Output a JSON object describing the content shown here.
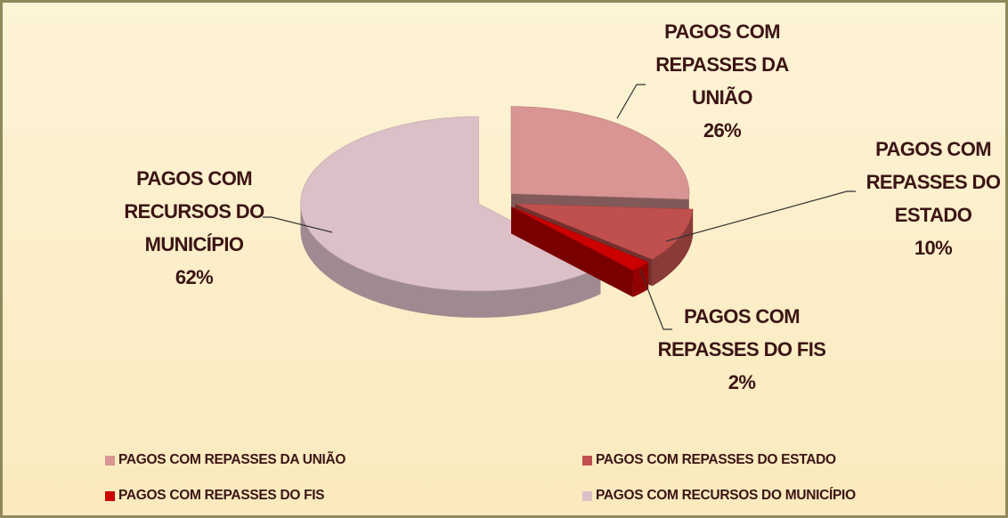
{
  "chart_data": {
    "type": "pie3d",
    "categories": [
      "PAGOS COM REPASSES DA UNIÃO",
      "PAGOS COM REPASSES DO ESTADO",
      "PAGOS COM REPASSES DO FIS",
      "PAGOS COM RECURSOS DO MUNICÍPIO"
    ],
    "values": [
      26,
      10,
      2,
      62
    ],
    "value_labels": [
      "26%",
      "10%",
      "2%",
      "62%"
    ],
    "colors": [
      "#d99594",
      "#c0504d",
      "#cc0000",
      "#dcc0c8"
    ],
    "legend": "bottom"
  }
}
